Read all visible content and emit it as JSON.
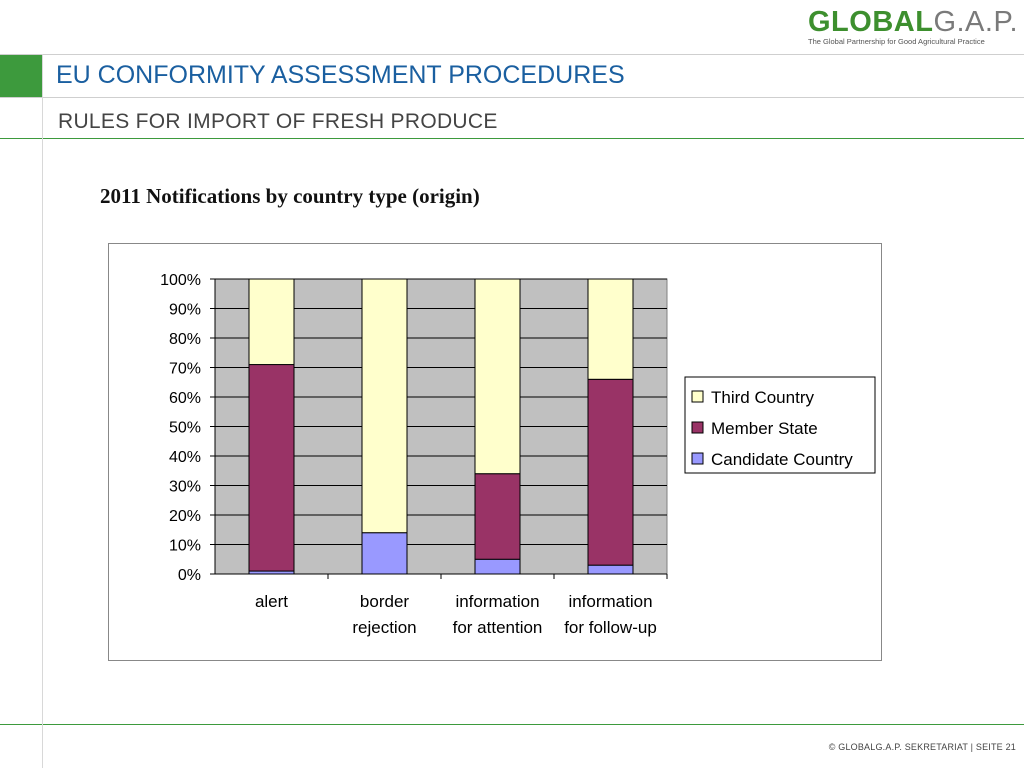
{
  "header": {
    "logo_main_bold": "GLOBAL",
    "logo_main_rest": "G.A.P.",
    "logo_tagline": "The Global Partnership for Good Agricultural Practice",
    "title": "EU CONFORMITY ASSESSMENT PROCEDURES",
    "subtitle": "RULES FOR IMPORT OF FRESH PRODUCE"
  },
  "footer": {
    "text": "© GLOBALG.A.P. SEKRETARIAT | SEITE 21"
  },
  "chart_data": {
    "type": "bar",
    "stacked": true,
    "percent": true,
    "title": "2011 Notifications by country type (origin)",
    "categories": [
      [
        "alert"
      ],
      [
        "border",
        "rejection"
      ],
      [
        "information",
        "for attention"
      ],
      [
        "information",
        "for follow-up"
      ]
    ],
    "y_ticks": [
      "0%",
      "10%",
      "20%",
      "30%",
      "40%",
      "50%",
      "60%",
      "70%",
      "80%",
      "90%",
      "100%"
    ],
    "ylim": [
      0,
      100
    ],
    "grid": true,
    "legend_position": "right",
    "series": [
      {
        "name": "Candidate Country",
        "color": "#9999ff",
        "values": [
          1,
          14,
          5,
          3
        ]
      },
      {
        "name": "Member State",
        "color": "#993366",
        "values": [
          70,
          0,
          29,
          63
        ]
      },
      {
        "name": "Third Country",
        "color": "#ffffcc",
        "values": [
          29,
          86,
          66,
          34
        ]
      }
    ],
    "legend_order": [
      "Third Country",
      "Member State",
      "Candidate Country"
    ],
    "plot_background": "#c0c0c0"
  }
}
